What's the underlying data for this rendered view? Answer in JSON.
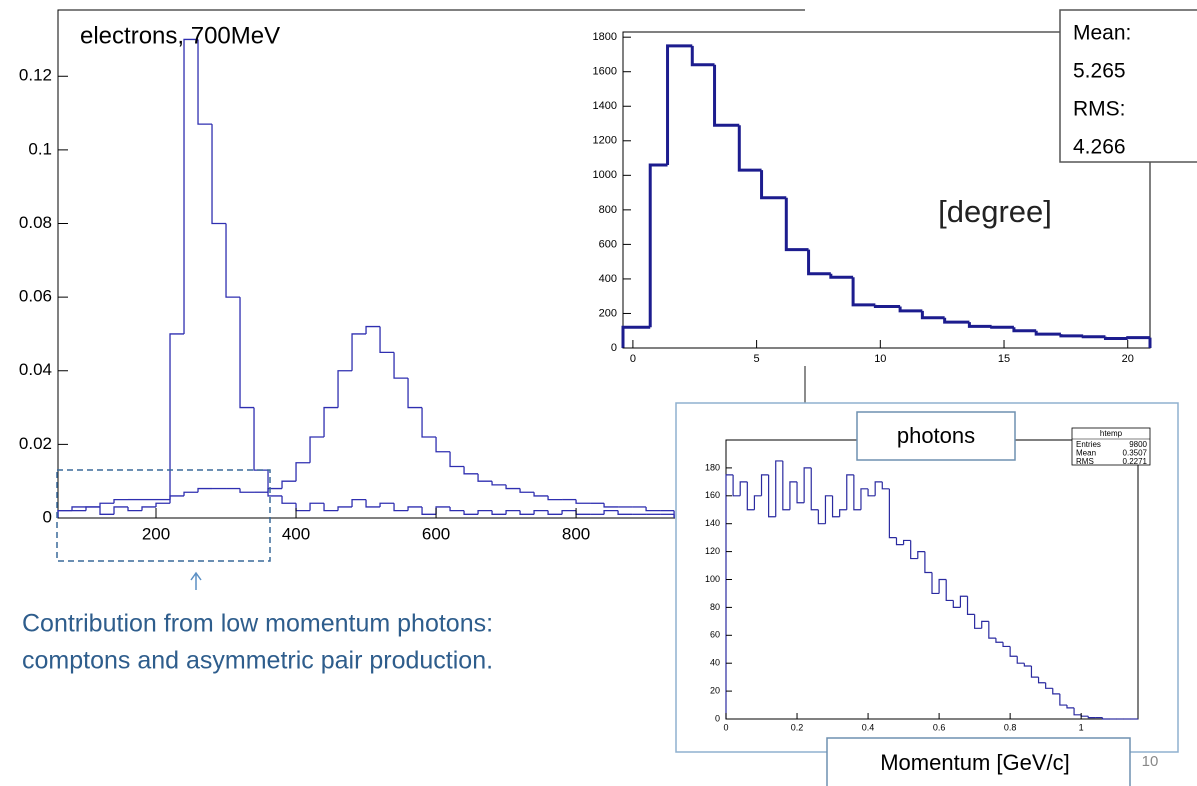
{
  "chart_data": [
    {
      "type": "histogram",
      "title": "electrons, 700MeV",
      "bins": [
        60,
        80,
        100,
        120,
        140,
        160,
        180,
        200,
        220,
        240,
        260,
        280,
        300,
        320,
        340,
        360,
        380,
        400,
        420,
        440,
        460,
        480,
        500,
        520,
        540,
        560,
        580,
        600,
        620,
        640,
        660,
        680,
        700,
        720,
        740,
        760,
        780,
        800,
        820,
        840,
        860,
        880,
        900,
        920,
        940
      ],
      "series": [
        {
          "color": "#2f2fb0",
          "values": [
            0.002,
            0.002,
            0.003,
            0.001,
            0.003,
            0.002,
            0.003,
            0.004,
            0.05,
            0.13,
            0.107,
            0.08,
            0.06,
            0.03,
            0.013,
            0.006,
            0.004,
            0.002,
            0.004,
            0.002,
            0.003,
            0.005,
            0.003,
            0.004,
            0.002,
            0.003,
            0.001,
            0.003,
            0.002,
            0.001,
            0.002,
            0.001,
            0.002,
            0.001,
            0.002,
            0.001,
            0.002,
            0.001,
            0.001,
            0.002,
            0.001,
            0.001,
            0.001,
            0.001
          ]
        },
        {
          "color": "#2f2fb0",
          "values": [
            0.002,
            0.003,
            0.003,
            0.004,
            0.005,
            0.005,
            0.005,
            0.005,
            0.006,
            0.007,
            0.008,
            0.008,
            0.008,
            0.007,
            0.007,
            0.008,
            0.01,
            0.015,
            0.022,
            0.03,
            0.04,
            0.05,
            0.052,
            0.045,
            0.038,
            0.03,
            0.022,
            0.018,
            0.014,
            0.012,
            0.01,
            0.009,
            0.008,
            0.007,
            0.006,
            0.005,
            0.005,
            0.004,
            0.004,
            0.003,
            0.003,
            0.003,
            0.002,
            0.002
          ]
        }
      ],
      "xlim": [
        60,
        1127
      ],
      "ylim": [
        0,
        0.138
      ],
      "xticks": [
        200,
        400,
        600,
        800
      ],
      "yticks": [
        0,
        0.02,
        0.04,
        0.06,
        0.08,
        0.1,
        0.12
      ]
    },
    {
      "type": "histogram",
      "x_label": "[degree]",
      "bins": [
        -0.4,
        0.7,
        1.4,
        2.4,
        3.3,
        4.3,
        5.2,
        6.2,
        7.1,
        8.0,
        8.9,
        9.8,
        10.8,
        11.7,
        12.6,
        13.6,
        14.5,
        15.4,
        16.3,
        17.3,
        18.2,
        19.1,
        20.0,
        20.9
      ],
      "values": [
        120,
        1060,
        1750,
        1640,
        1290,
        1030,
        870,
        570,
        430,
        410,
        250,
        240,
        215,
        175,
        150,
        125,
        120,
        100,
        80,
        70,
        65,
        55,
        60
      ],
      "color": "#1c1c8e",
      "xlim": [
        -0.4,
        20.9
      ],
      "ylim": [
        0,
        1830
      ],
      "xticks": [
        0,
        5,
        10,
        15,
        20
      ],
      "yticks": [
        0,
        200,
        400,
        600,
        800,
        1000,
        1200,
        1400,
        1600,
        1800
      ],
      "stats": [
        {
          "name": "Mean:",
          "value": 5.265
        },
        {
          "name": "RMS:",
          "value": 4.266
        }
      ]
    },
    {
      "type": "histogram",
      "title": "photons",
      "x_label": "Momentum [GeV/c]",
      "bins": [
        0,
        0.02,
        0.04,
        0.06,
        0.08,
        0.1,
        0.12,
        0.14,
        0.16,
        0.18,
        0.2,
        0.22,
        0.24,
        0.26,
        0.28,
        0.3,
        0.32,
        0.34,
        0.36,
        0.38,
        0.4,
        0.42,
        0.44,
        0.46,
        0.48,
        0.5,
        0.52,
        0.54,
        0.56,
        0.58,
        0.6,
        0.62,
        0.64,
        0.66,
        0.68,
        0.7,
        0.72,
        0.74,
        0.76,
        0.78,
        0.8,
        0.82,
        0.84,
        0.86,
        0.88,
        0.9,
        0.92,
        0.94,
        0.96,
        0.98,
        1,
        1.02,
        1.04,
        1.06,
        1.08,
        1.1,
        1.12,
        1.14,
        1.16
      ],
      "values": [
        175,
        160,
        170,
        150,
        160,
        175,
        145,
        185,
        150,
        170,
        155,
        180,
        150,
        140,
        160,
        145,
        150,
        175,
        150,
        165,
        160,
        170,
        165,
        130,
        125,
        128,
        115,
        120,
        105,
        90,
        100,
        85,
        80,
        88,
        75,
        65,
        70,
        58,
        55,
        52,
        45,
        40,
        38,
        30,
        26,
        22,
        18,
        10,
        8,
        3,
        2,
        1,
        1,
        0,
        0,
        0,
        0,
        0
      ],
      "color": "#2a2aa0",
      "xlim": [
        0,
        1.16
      ],
      "ylim": [
        0,
        200
      ],
      "xticks": [
        0,
        0.2,
        0.4,
        0.6,
        0.8,
        1
      ],
      "yticks": [
        0,
        20,
        40,
        60,
        80,
        100,
        120,
        140,
        160,
        180
      ],
      "stats_title": "htemp",
      "stats": [
        {
          "name": "Entries",
          "value": 9800
        },
        {
          "name": "Mean",
          "value": 0.3507
        },
        {
          "name": "RMS",
          "value": 0.2271
        }
      ]
    }
  ],
  "caption": [
    "Contribution from low momentum photons:",
    "comptons and asymmetric pair production."
  ],
  "page_number": "10"
}
